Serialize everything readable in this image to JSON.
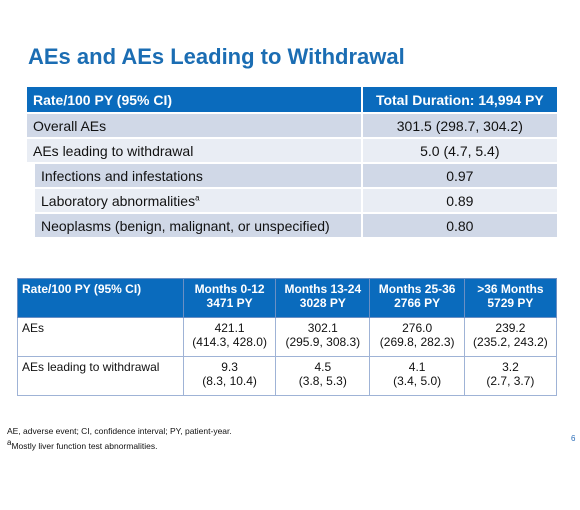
{
  "title": "AEs and AEs Leading to Withdrawal",
  "table1": {
    "header": [
      "Rate/100 PY (95% CI)",
      "Total Duration: 14,994 PY"
    ],
    "rows": [
      {
        "label": "Overall AEs",
        "value": "301.5 (298.7, 304.2)"
      },
      {
        "label": "AEs leading to withdrawal",
        "value": "5.0 (4.7, 5.4)"
      },
      {
        "label": "Infections and infestations",
        "value": "0.97"
      },
      {
        "label": "Laboratory abnormalities",
        "marker": "a",
        "value": "0.89"
      },
      {
        "label": "Neoplasms (benign, malignant, or unspecified)",
        "value": "0.80"
      }
    ]
  },
  "table2": {
    "header": [
      {
        "line1": "Rate/100 PY (95% CI)"
      },
      {
        "line1": "Months 0-12",
        "line2": "3471 PY"
      },
      {
        "line1": "Months 13-24",
        "line2": "3028 PY"
      },
      {
        "line1": "Months 25-36",
        "line2": "2766 PY"
      },
      {
        "line1": ">36 Months",
        "line2": "5729 PY"
      }
    ],
    "rows": [
      {
        "label": "AEs",
        "cells": [
          {
            "value": "421.1",
            "ci": "(414.3, 428.0)"
          },
          {
            "value": "302.1",
            "ci": "(295.9, 308.3)"
          },
          {
            "value": "276.0",
            "ci": "(269.8, 282.3)"
          },
          {
            "value": "239.2",
            "ci": "(235.2, 243.2)"
          }
        ]
      },
      {
        "label": "AEs leading to withdrawal",
        "cells": [
          {
            "value": "9.3",
            "ci": "(8.3, 10.4)"
          },
          {
            "value": "4.5",
            "ci": "(3.8, 5.3)"
          },
          {
            "value": "4.1",
            "ci": "(3.4, 5.0)"
          },
          {
            "value": "3.2",
            "ci": "(2.7, 3.7)"
          }
        ]
      }
    ]
  },
  "footnotes": [
    {
      "text": "AE, adverse event; CI, confidence interval; PY, patient-year."
    },
    {
      "marker": "a",
      "text": "Mostly liver function test abnormalities."
    }
  ],
  "page_number": "6"
}
